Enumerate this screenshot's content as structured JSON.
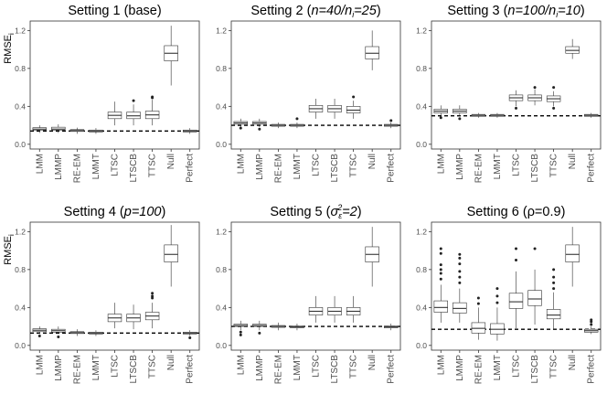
{
  "figure": {
    "y_axis_title": "RMSE",
    "y_axis_title_subscript": "i",
    "y_axis_panels": [
      0,
      3
    ]
  },
  "chart_data": [
    {
      "type": "box",
      "title": "Setting 1 (base)",
      "title_parts": [
        {
          "text": "Setting 1 (base)",
          "italic": false
        }
      ],
      "categories": [
        "LMM",
        "LMMP",
        "RE-EM",
        "LMMT",
        "LTSC",
        "LTSCB",
        "TTSC",
        "Null",
        "Perfect"
      ],
      "ylabel": "RMSE_i",
      "ylim": [
        -0.05,
        1.3
      ],
      "yticks": [
        0.0,
        0.4,
        0.8,
        1.2
      ],
      "reference_line": 0.14,
      "boxes": [
        {
          "whisker_low": 0.12,
          "q1": 0.15,
          "median": 0.16,
          "q3": 0.175,
          "whisker_high": 0.2,
          "outliers": []
        },
        {
          "whisker_low": 0.12,
          "q1": 0.15,
          "median": 0.16,
          "q3": 0.18,
          "whisker_high": 0.21,
          "outliers": []
        },
        {
          "whisker_low": 0.11,
          "q1": 0.135,
          "median": 0.145,
          "q3": 0.155,
          "whisker_high": 0.175,
          "outliers": []
        },
        {
          "whisker_low": 0.11,
          "q1": 0.13,
          "median": 0.14,
          "q3": 0.15,
          "whisker_high": 0.17,
          "outliers": []
        },
        {
          "whisker_low": 0.2,
          "q1": 0.27,
          "median": 0.305,
          "q3": 0.34,
          "whisker_high": 0.45,
          "outliers": []
        },
        {
          "whisker_low": 0.2,
          "q1": 0.27,
          "median": 0.3,
          "q3": 0.34,
          "whisker_high": 0.42,
          "outliers": [
            0.46
          ]
        },
        {
          "whisker_low": 0.2,
          "q1": 0.27,
          "median": 0.31,
          "q3": 0.35,
          "whisker_high": 0.47,
          "outliers": [
            0.49,
            0.5
          ]
        },
        {
          "whisker_low": 0.62,
          "q1": 0.88,
          "median": 0.96,
          "q3": 1.04,
          "whisker_high": 1.25,
          "outliers": []
        },
        {
          "whisker_low": 0.11,
          "q1": 0.13,
          "median": 0.14,
          "q3": 0.15,
          "whisker_high": 0.17,
          "outliers": []
        }
      ]
    },
    {
      "type": "box",
      "title": "Setting 2 (n=40/n_i=25)",
      "title_parts": [
        {
          "text": "Setting 2 (",
          "italic": false
        },
        {
          "text": "n=40/n",
          "italic": true
        },
        {
          "text": "i",
          "italic": true,
          "sub": true
        },
        {
          "text": "=25",
          "italic": true
        },
        {
          "text": ")",
          "italic": false
        }
      ],
      "categories": [
        "LMM",
        "LMMP",
        "RE-EM",
        "LMMT",
        "LTSC",
        "LTSCB",
        "TTSC",
        "Null",
        "Perfect"
      ],
      "ylabel": "RMSE_i",
      "ylim": [
        -0.05,
        1.3
      ],
      "yticks": [
        0.0,
        0.4,
        0.8,
        1.2
      ],
      "reference_line": 0.2,
      "boxes": [
        {
          "whisker_low": 0.18,
          "q1": 0.21,
          "median": 0.225,
          "q3": 0.24,
          "whisker_high": 0.27,
          "outliers": [
            0.17
          ]
        },
        {
          "whisker_low": 0.18,
          "q1": 0.21,
          "median": 0.225,
          "q3": 0.24,
          "whisker_high": 0.27,
          "outliers": [
            0.16
          ]
        },
        {
          "whisker_low": 0.17,
          "q1": 0.19,
          "median": 0.2,
          "q3": 0.21,
          "whisker_high": 0.23,
          "outliers": []
        },
        {
          "whisker_low": 0.17,
          "q1": 0.19,
          "median": 0.2,
          "q3": 0.21,
          "whisker_high": 0.23,
          "outliers": [
            0.27
          ]
        },
        {
          "whisker_low": 0.27,
          "q1": 0.34,
          "median": 0.375,
          "q3": 0.41,
          "whisker_high": 0.48,
          "outliers": []
        },
        {
          "whisker_low": 0.27,
          "q1": 0.34,
          "median": 0.375,
          "q3": 0.41,
          "whisker_high": 0.48,
          "outliers": []
        },
        {
          "whisker_low": 0.27,
          "q1": 0.33,
          "median": 0.36,
          "q3": 0.4,
          "whisker_high": 0.46,
          "outliers": [
            0.5
          ]
        },
        {
          "whisker_low": 0.78,
          "q1": 0.9,
          "median": 0.96,
          "q3": 1.03,
          "whisker_high": 1.2,
          "outliers": []
        },
        {
          "whisker_low": 0.17,
          "q1": 0.19,
          "median": 0.2,
          "q3": 0.21,
          "whisker_high": 0.23,
          "outliers": [
            0.25
          ]
        }
      ]
    },
    {
      "type": "box",
      "title": "Setting 3 (n=100/n_i=10)",
      "title_parts": [
        {
          "text": "Setting 3 (",
          "italic": false
        },
        {
          "text": "n=100/n",
          "italic": true
        },
        {
          "text": "i",
          "italic": true,
          "sub": true
        },
        {
          "text": "=10",
          "italic": true
        },
        {
          "text": ")",
          "italic": false
        }
      ],
      "categories": [
        "LMM",
        "LMMP",
        "RE-EM",
        "LMMT",
        "LTSC",
        "LTSCB",
        "TTSC",
        "Null",
        "Perfect"
      ],
      "ylabel": "RMSE_i",
      "ylim": [
        -0.05,
        1.3
      ],
      "yticks": [
        0.0,
        0.4,
        0.8,
        1.2
      ],
      "reference_line": 0.3,
      "boxes": [
        {
          "whisker_low": 0.3,
          "q1": 0.33,
          "median": 0.35,
          "q3": 0.37,
          "whisker_high": 0.41,
          "outliers": [
            0.28
          ]
        },
        {
          "whisker_low": 0.3,
          "q1": 0.33,
          "median": 0.35,
          "q3": 0.37,
          "whisker_high": 0.41,
          "outliers": [
            0.27
          ]
        },
        {
          "whisker_low": 0.28,
          "q1": 0.295,
          "median": 0.305,
          "q3": 0.315,
          "whisker_high": 0.33,
          "outliers": []
        },
        {
          "whisker_low": 0.28,
          "q1": 0.295,
          "median": 0.305,
          "q3": 0.315,
          "whisker_high": 0.33,
          "outliers": []
        },
        {
          "whisker_low": 0.4,
          "q1": 0.46,
          "median": 0.49,
          "q3": 0.52,
          "whisker_high": 0.57,
          "outliers": [
            0.38
          ]
        },
        {
          "whisker_low": 0.41,
          "q1": 0.46,
          "median": 0.49,
          "q3": 0.52,
          "whisker_high": 0.58,
          "outliers": [
            0.6
          ]
        },
        {
          "whisker_low": 0.4,
          "q1": 0.45,
          "median": 0.48,
          "q3": 0.51,
          "whisker_high": 0.56,
          "outliers": [
            0.38,
            0.6
          ]
        },
        {
          "whisker_low": 0.9,
          "q1": 0.96,
          "median": 0.99,
          "q3": 1.03,
          "whisker_high": 1.11,
          "outliers": []
        },
        {
          "whisker_low": 0.28,
          "q1": 0.295,
          "median": 0.305,
          "q3": 0.315,
          "whisker_high": 0.33,
          "outliers": []
        }
      ]
    },
    {
      "type": "box",
      "title": "Setting 4 (p=100)",
      "title_parts": [
        {
          "text": "Setting 4 (",
          "italic": false
        },
        {
          "text": "p=100",
          "italic": true
        },
        {
          "text": ")",
          "italic": false
        }
      ],
      "categories": [
        "LMM",
        "LMMP",
        "RE-EM",
        "LMMT",
        "LTSC",
        "LTSCB",
        "TTSC",
        "Null",
        "Perfect"
      ],
      "ylabel": "RMSE_i",
      "ylim": [
        -0.05,
        1.3
      ],
      "yticks": [
        0.0,
        0.4,
        0.8,
        1.2
      ],
      "reference_line": 0.13,
      "boxes": [
        {
          "whisker_low": 0.12,
          "q1": 0.145,
          "median": 0.16,
          "q3": 0.175,
          "whisker_high": 0.2,
          "outliers": [
            0.1
          ]
        },
        {
          "whisker_low": 0.12,
          "q1": 0.14,
          "median": 0.155,
          "q3": 0.17,
          "whisker_high": 0.2,
          "outliers": [
            0.09
          ]
        },
        {
          "whisker_low": 0.1,
          "q1": 0.125,
          "median": 0.135,
          "q3": 0.145,
          "whisker_high": 0.17,
          "outliers": []
        },
        {
          "whisker_low": 0.1,
          "q1": 0.12,
          "median": 0.13,
          "q3": 0.14,
          "whisker_high": 0.16,
          "outliers": []
        },
        {
          "whisker_low": 0.18,
          "q1": 0.25,
          "median": 0.29,
          "q3": 0.33,
          "whisker_high": 0.45,
          "outliers": []
        },
        {
          "whisker_low": 0.17,
          "q1": 0.25,
          "median": 0.29,
          "q3": 0.33,
          "whisker_high": 0.43,
          "outliers": []
        },
        {
          "whisker_low": 0.18,
          "q1": 0.27,
          "median": 0.31,
          "q3": 0.35,
          "whisker_high": 0.45,
          "outliers": [
            0.5,
            0.52,
            0.55
          ]
        },
        {
          "whisker_low": 0.62,
          "q1": 0.88,
          "median": 0.96,
          "q3": 1.06,
          "whisker_high": 1.27,
          "outliers": []
        },
        {
          "whisker_low": 0.1,
          "q1": 0.12,
          "median": 0.13,
          "q3": 0.14,
          "whisker_high": 0.16,
          "outliers": [
            0.08
          ]
        }
      ]
    },
    {
      "type": "box",
      "title": "Setting 5 (σ_ε^2=2)",
      "title_parts": [
        {
          "text": "Setting 5 (",
          "italic": false
        },
        {
          "text": "σ",
          "italic": true
        },
        {
          "text": "ε",
          "italic": true,
          "sub": true
        },
        {
          "text": "2",
          "italic": true,
          "sup": true
        },
        {
          "text": "=2",
          "italic": true
        },
        {
          "text": ")",
          "italic": false
        }
      ],
      "categories": [
        "LMM",
        "LMMP",
        "RE-EM",
        "LMMT",
        "LTSC",
        "LTSCB",
        "TTSC",
        "Null",
        "Perfect"
      ],
      "ylabel": "RMSE_i",
      "ylim": [
        -0.05,
        1.3
      ],
      "yticks": [
        0.0,
        0.4,
        0.8,
        1.2
      ],
      "reference_line": 0.2,
      "boxes": [
        {
          "whisker_low": 0.16,
          "q1": 0.2,
          "median": 0.21,
          "q3": 0.225,
          "whisker_high": 0.26,
          "outliers": [
            0.11,
            0.14
          ]
        },
        {
          "whisker_low": 0.16,
          "q1": 0.2,
          "median": 0.21,
          "q3": 0.225,
          "whisker_high": 0.26,
          "outliers": [
            0.13
          ]
        },
        {
          "whisker_low": 0.16,
          "q1": 0.19,
          "median": 0.2,
          "q3": 0.21,
          "whisker_high": 0.24,
          "outliers": []
        },
        {
          "whisker_low": 0.16,
          "q1": 0.185,
          "median": 0.195,
          "q3": 0.205,
          "whisker_high": 0.23,
          "outliers": []
        },
        {
          "whisker_low": 0.24,
          "q1": 0.32,
          "median": 0.36,
          "q3": 0.4,
          "whisker_high": 0.52,
          "outliers": []
        },
        {
          "whisker_low": 0.24,
          "q1": 0.32,
          "median": 0.36,
          "q3": 0.4,
          "whisker_high": 0.52,
          "outliers": []
        },
        {
          "whisker_low": 0.24,
          "q1": 0.32,
          "median": 0.36,
          "q3": 0.4,
          "whisker_high": 0.52,
          "outliers": []
        },
        {
          "whisker_low": 0.62,
          "q1": 0.88,
          "median": 0.96,
          "q3": 1.04,
          "whisker_high": 1.25,
          "outliers": []
        },
        {
          "whisker_low": 0.16,
          "q1": 0.185,
          "median": 0.195,
          "q3": 0.205,
          "whisker_high": 0.23,
          "outliers": []
        }
      ]
    },
    {
      "type": "box",
      "title": "Setting 6 (ρ=0.9)",
      "title_parts": [
        {
          "text": "Setting 6 (",
          "italic": false
        },
        {
          "text": "ρ=0.9",
          "italic": false
        },
        {
          "text": ")",
          "italic": false
        }
      ],
      "categories": [
        "LMM",
        "LMMP",
        "RE-EM",
        "LMMT",
        "LTSC",
        "LTSCB",
        "TTSC",
        "Null",
        "Perfect"
      ],
      "ylabel": "RMSE_i",
      "ylim": [
        -0.05,
        1.3
      ],
      "yticks": [
        0.0,
        0.4,
        0.8,
        1.2
      ],
      "reference_line": 0.17,
      "boxes": [
        {
          "whisker_low": 0.24,
          "q1": 0.35,
          "median": 0.4,
          "q3": 0.47,
          "whisker_high": 0.64,
          "outliers": [
            0.7,
            0.76,
            0.8,
            0.85,
            0.97,
            1.02
          ]
        },
        {
          "whisker_low": 0.24,
          "q1": 0.34,
          "median": 0.39,
          "q3": 0.45,
          "whisker_high": 0.6,
          "outliers": [
            0.66,
            0.72,
            0.78,
            0.86,
            0.92,
            0.96
          ]
        },
        {
          "whisker_low": 0.06,
          "q1": 0.13,
          "median": 0.18,
          "q3": 0.24,
          "whisker_high": 0.4,
          "outliers": [
            0.44,
            0.5
          ]
        },
        {
          "whisker_low": 0.05,
          "q1": 0.12,
          "median": 0.17,
          "q3": 0.23,
          "whisker_high": 0.4,
          "outliers": [
            0.45,
            0.52,
            0.6
          ]
        },
        {
          "whisker_low": 0.18,
          "q1": 0.39,
          "median": 0.46,
          "q3": 0.55,
          "whisker_high": 0.78,
          "outliers": [
            0.9,
            1.02
          ]
        },
        {
          "whisker_low": 0.22,
          "q1": 0.42,
          "median": 0.49,
          "q3": 0.58,
          "whisker_high": 0.8,
          "outliers": [
            1.02
          ]
        },
        {
          "whisker_low": 0.17,
          "q1": 0.28,
          "median": 0.32,
          "q3": 0.38,
          "whisker_high": 0.56,
          "outliers": [
            0.6,
            0.66,
            0.72,
            0.8
          ]
        },
        {
          "whisker_low": 0.62,
          "q1": 0.88,
          "median": 0.96,
          "q3": 1.06,
          "whisker_high": 1.25,
          "outliers": []
        },
        {
          "whisker_low": 0.12,
          "q1": 0.14,
          "median": 0.155,
          "q3": 0.17,
          "whisker_high": 0.2,
          "outliers": [
            0.22,
            0.25,
            0.27
          ]
        }
      ]
    }
  ]
}
